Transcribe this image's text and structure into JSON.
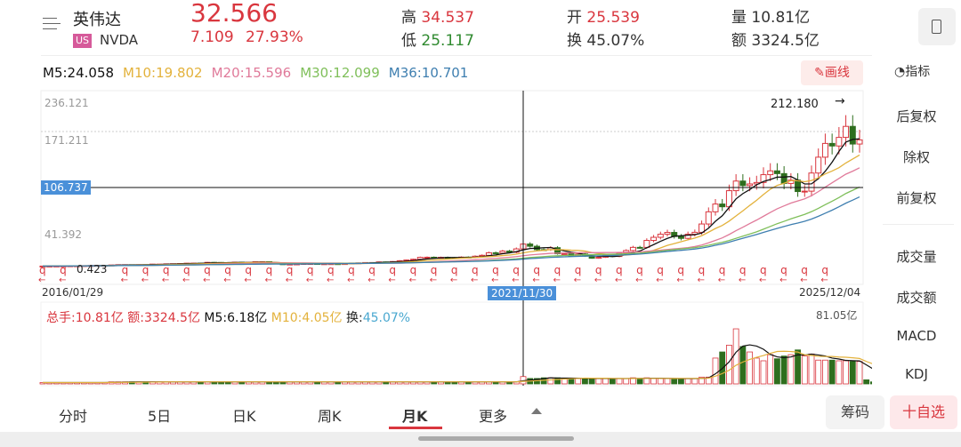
{
  "header": {
    "name": "英伟达",
    "market_badge": "US",
    "ticker": "NVDA",
    "price": "32.566",
    "change": "7.109",
    "change_pct": "27.93%",
    "high_label": "高",
    "high": "34.537",
    "low_label": "低",
    "low": "25.117",
    "open_label": "开",
    "open": "25.539",
    "turnover_label": "换",
    "turnover": "45.07%",
    "volume_label": "量",
    "volume": "10.81亿",
    "amount_label": "额",
    "amount": "3324.5亿",
    "menu_icon": "list-arrow-icon",
    "device_icon": "phone-icon"
  },
  "ma": {
    "m5": "M5:24.058",
    "m10": "M10:19.802",
    "m20": "M20:15.596",
    "m30": "M30:12.099",
    "m36": "M36:10.701"
  },
  "draw_button": "画线",
  "indicator_button": "指标",
  "chart_data": {
    "type": "candlestick",
    "period": "monthly",
    "y_ticks": [
      "236.121",
      "171.211",
      "106.737",
      "41.392"
    ],
    "crosshair_price": "106.737",
    "crosshair_date": "2021/11/30",
    "max_label": "212.180",
    "min_label": "0.423",
    "start_date": "2016/01/29",
    "end_date": "2025/12/04",
    "closes": [
      0.73,
      0.78,
      0.89,
      0.89,
      1.17,
      1.17,
      1.43,
      1.53,
      1.71,
      1.73,
      2.35,
      2.67,
      2.68,
      2.52,
      2.72,
      2.6,
      3.6,
      3.61,
      3.99,
      4.23,
      4.47,
      4.94,
      4.97,
      4.84,
      6.13,
      6.02,
      5.79,
      5.62,
      6.31,
      5.92,
      6.09,
      7.02,
      7.03,
      5.27,
      4.09,
      3.34,
      3.59,
      3.85,
      4.49,
      4.52,
      3.38,
      4.11,
      4.22,
      4.19,
      4.35,
      5.21,
      5.42,
      5.88,
      5.91,
      6.74,
      6.59,
      7.31,
      8.51,
      9.5,
      10.62,
      13.38,
      13.53,
      12.54,
      13.37,
      13.05,
      12.99,
      13.72,
      13.35,
      15.01,
      16.29,
      20.0,
      19.49,
      22.38,
      20.72,
      25.55,
      32.57,
      29.41,
      24.49,
      24.38,
      27.29,
      18.55,
      18.67,
      15.16,
      18.17,
      15.08,
      12.14,
      13.5,
      16.92,
      14.61,
      19.52,
      23.21,
      27.78,
      27.75,
      37.8,
      42.3,
      46.72,
      49.35,
      43.5,
      40.78,
      46.77,
      49.52,
      61.53,
      79.11,
      90.36,
      86.4,
      109.63,
      123.54,
      117.02,
      119.37,
      121.44,
      132.76,
      138.25,
      134.29,
      120.07,
      124.92,
      108.38,
      108.92,
      135.13,
      157.99,
      177.87,
      174.18,
      186.58,
      202.49,
      177.0,
      183.0
    ],
    "volumes": [
      2,
      2,
      2,
      2,
      2,
      2,
      2,
      2,
      2,
      2,
      3,
      3,
      3,
      3,
      3,
      3,
      3,
      3,
      3,
      3,
      3,
      3,
      3,
      3,
      3,
      3,
      3,
      3,
      3,
      3,
      3,
      3,
      3,
      3,
      3,
      3,
      3,
      3,
      3,
      3,
      3,
      3,
      3,
      3,
      3,
      3,
      3,
      3,
      3,
      3,
      3,
      3,
      3,
      3,
      3,
      3,
      3,
      3,
      3,
      3,
      3,
      3,
      3,
      3,
      3,
      3,
      3,
      3,
      3,
      3,
      10.81,
      8,
      8,
      9,
      9,
      9,
      8,
      8,
      8,
      8,
      8,
      8,
      8,
      7,
      8,
      8,
      9,
      8,
      9,
      8,
      8,
      8,
      7,
      8,
      8,
      8,
      10,
      10,
      38,
      47,
      57,
      81,
      55,
      47,
      38,
      34,
      43,
      37,
      41,
      43,
      50,
      41,
      44,
      35,
      35,
      35,
      34,
      34,
      33,
      33,
      6,
      3
    ],
    "volume_max_label": "81.05亿",
    "colors": {
      "up": "#d9363e",
      "down": "#2e6e1e",
      "ma5": "#111111",
      "ma10": "#e3b23c",
      "ma20": "#e07a9a",
      "ma30": "#7fbf5a",
      "ma36": "#3f7fb0"
    }
  },
  "volume_info": {
    "total": "总手:10.81亿",
    "amount": "额:3324.5亿",
    "m5": "M5:6.18亿",
    "m10": "M10:4.05亿",
    "turnover_label": "换:",
    "turnover": "45.07%"
  },
  "side_menu": [
    "后复权",
    "除权",
    "前复权",
    "成交量",
    "成交额",
    "MACD",
    "KDJ"
  ],
  "tabs": [
    "分时",
    "5日",
    "日K",
    "周K",
    "月K",
    "更多"
  ],
  "active_tab": "月K",
  "chips_button": "筹码",
  "watch_button": "十自选"
}
